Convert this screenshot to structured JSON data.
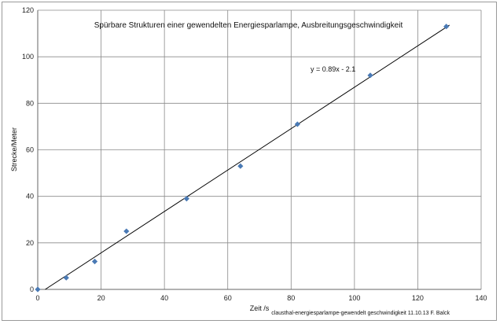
{
  "chart_data": {
    "type": "scatter",
    "title": "Spürbare Strukturen einer gewendelten Energiesparlampe, Ausbreitungsgeschwindigkeit",
    "xlabel": "Zeit /s",
    "ylabel": "Strecke/Meter",
    "xlim": [
      0,
      140
    ],
    "ylim": [
      0,
      120
    ],
    "xticks": [
      0,
      20,
      40,
      60,
      80,
      100,
      120,
      140
    ],
    "yticks": [
      0,
      20,
      40,
      60,
      80,
      100,
      120
    ],
    "grid": true,
    "series": [
      {
        "marker": "diamond",
        "color": "#4a7ab5",
        "x": [
          0,
          9,
          18,
          28,
          47,
          64,
          82,
          105,
          129
        ],
        "y": [
          0,
          5,
          12,
          25,
          39,
          53,
          71,
          92,
          113
        ]
      }
    ],
    "trendline": {
      "slope": 0.89,
      "intercept": -2.1,
      "equation_label": "y = 0.89x - 2.1",
      "color": "#000000"
    },
    "footer_note": "clausthal-energiesparlampe-gewendelt  geschwindigkeit 11.10.13 F. Balck"
  }
}
